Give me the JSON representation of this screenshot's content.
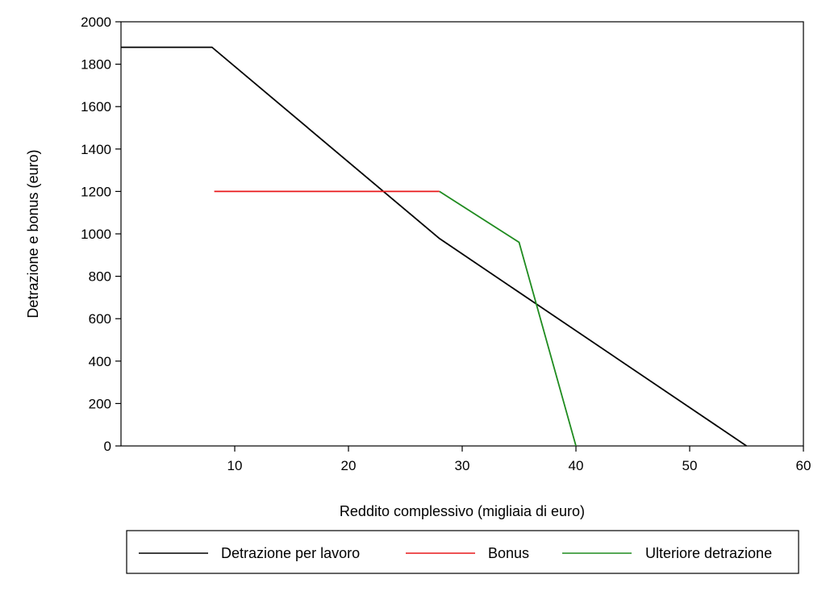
{
  "chart_data": {
    "type": "line",
    "title": "",
    "xlabel": "Reddito complessivo (migliaia di euro)",
    "ylabel": "Detrazione e bonus (euro)",
    "xlim": [
      0,
      60
    ],
    "ylim": [
      0,
      2000
    ],
    "xticks": [
      10,
      20,
      30,
      40,
      50,
      60
    ],
    "yticks": [
      0,
      200,
      400,
      600,
      800,
      1000,
      1200,
      1400,
      1600,
      1800,
      2000
    ],
    "grid": false,
    "legend_position": "bottom",
    "series": [
      {
        "name": "Detrazione per lavoro",
        "color": "#000000",
        "points": [
          [
            0,
            1880
          ],
          [
            8,
            1880
          ],
          [
            28,
            978
          ],
          [
            55,
            0
          ]
        ]
      },
      {
        "name": "Bonus",
        "color": "#e8191c",
        "points": [
          [
            8.2,
            1200
          ],
          [
            28,
            1200
          ]
        ]
      },
      {
        "name": "Ulteriore detrazione",
        "color": "#1f8b1f",
        "points": [
          [
            28,
            1200
          ],
          [
            35,
            960
          ],
          [
            40,
            0
          ]
        ]
      }
    ]
  }
}
